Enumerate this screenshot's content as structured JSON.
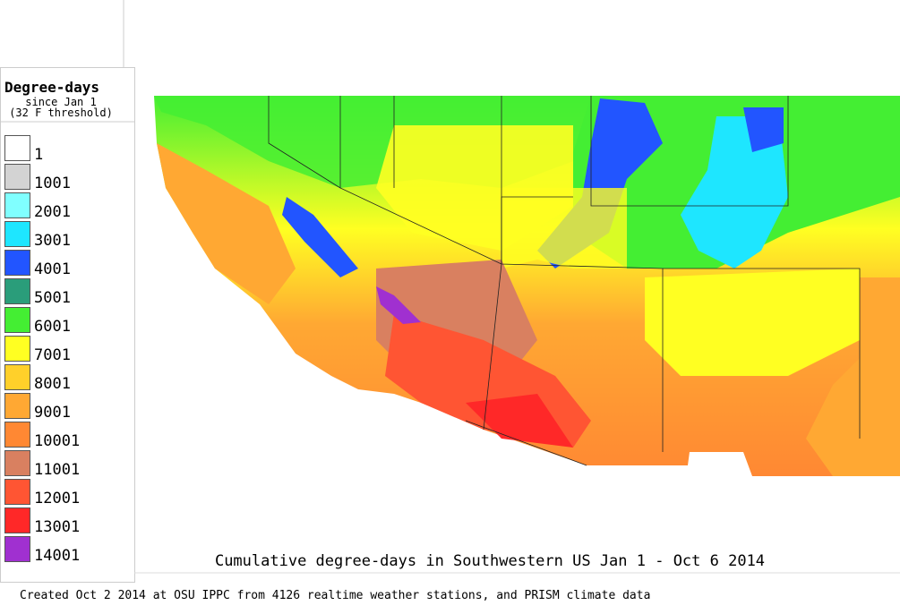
{
  "legend": {
    "title": "Degree-days",
    "subtitle": "since Jan 1",
    "note": "(32 F threshold)",
    "items": [
      {
        "label": "1",
        "color": "#ffffff"
      },
      {
        "label": "1001",
        "color": "#d3d3d3"
      },
      {
        "label": "2001",
        "color": "#80ffff"
      },
      {
        "label": "3001",
        "color": "#1ee6ff"
      },
      {
        "label": "4001",
        "color": "#2255ff"
      },
      {
        "label": "5001",
        "color": "#2a9d7a"
      },
      {
        "label": "6001",
        "color": "#44ee33"
      },
      {
        "label": "7001",
        "color": "#ffff22"
      },
      {
        "label": "8001",
        "color": "#ffd02a"
      },
      {
        "label": "9001",
        "color": "#ffa833"
      },
      {
        "label": "10001",
        "color": "#ff8833"
      },
      {
        "label": "11001",
        "color": "#d98060"
      },
      {
        "label": "12001",
        "color": "#ff5533"
      },
      {
        "label": "13001",
        "color": "#ff2828"
      },
      {
        "label": "14001",
        "color": "#a030d0"
      }
    ]
  },
  "map": {
    "title": "Cumulative degree-days in Southwestern US Jan 1 - Oct 6 2014"
  },
  "footer": "Created Oct 2 2014 at OSU IPPC from 4126 realtime weather stations, and PRISM climate data"
}
